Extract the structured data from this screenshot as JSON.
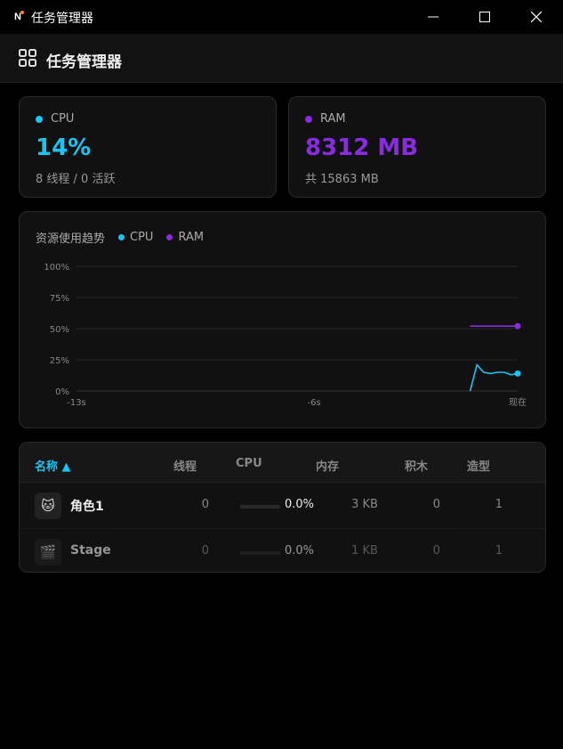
{
  "window": {
    "title": "任务管理器",
    "app_icon_letter": "N"
  },
  "header": {
    "title": "任务管理器",
    "icon": "grid-icon"
  },
  "stats": {
    "cpu": {
      "label": "CPU",
      "value": "14%",
      "sub": "8 线程 / 0 活跃",
      "color": "#1ac4f2"
    },
    "ram": {
      "label": "RAM",
      "value": "8312 MB",
      "sub": "共 15863 MB",
      "color": "#8a2be2"
    }
  },
  "trend": {
    "title": "资源使用趋势",
    "legend": [
      {
        "name": "CPU",
        "color": "#1ac4f2"
      },
      {
        "name": "RAM",
        "color": "#8a2be2"
      }
    ]
  },
  "chart_data": {
    "type": "line",
    "title": "资源使用趋势",
    "ylim": [
      0,
      100
    ],
    "yticks": [
      "100%",
      "75%",
      "50%",
      "25%",
      "0%"
    ],
    "ytick_values": [
      100,
      75,
      50,
      25,
      0
    ],
    "xlim": [
      -13,
      0
    ],
    "xticks": [
      "-13s",
      "-6s",
      "现在"
    ],
    "xtick_values": [
      -13,
      -6,
      0
    ],
    "grid": true,
    "series": [
      {
        "name": "CPU",
        "color": "#1ac4f2",
        "x": [
          -1.4,
          -1.2,
          -1.0,
          -0.8,
          -0.6,
          -0.4,
          -0.2,
          0
        ],
        "y": [
          0,
          21,
          15,
          14,
          15,
          15,
          13,
          14
        ]
      },
      {
        "name": "RAM",
        "color": "#8a2be2",
        "x": [
          -1.4,
          0
        ],
        "y": [
          52,
          52
        ]
      }
    ]
  },
  "table": {
    "columns": [
      "名称 ▲",
      "线程",
      "CPU",
      "内存",
      "积木",
      "造型"
    ],
    "rows": [
      {
        "icon": "cat-icon",
        "glyph": "🐱",
        "name": "角色1",
        "threads": "0",
        "cpu": "0.0%",
        "cpu_fraction": 0,
        "memory": "3 KB",
        "blocks": "0",
        "costumes": "1"
      },
      {
        "icon": "stage-icon",
        "glyph": "🎬",
        "name": "Stage",
        "threads": "0",
        "cpu": "0.0%",
        "cpu_fraction": 0,
        "memory": "1 KB",
        "blocks": "0",
        "costumes": "1"
      }
    ]
  }
}
